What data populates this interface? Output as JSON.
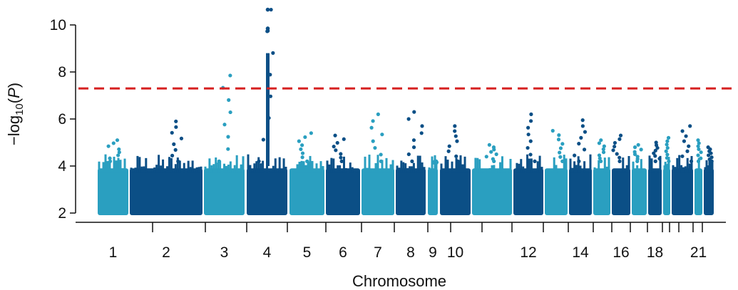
{
  "chart_data": {
    "type": "scatter",
    "title": "",
    "xlabel": "Chromosome",
    "ylabel_parts": {
      "prefix": "−log",
      "sub": "10",
      "open": "(",
      "var": "P",
      "close": ")"
    },
    "ylim": [
      1.6,
      11
    ],
    "yticks": [
      2,
      4,
      6,
      8,
      10
    ],
    "threshold": 7.3,
    "colors": {
      "light": "#2a9fc0",
      "dark": "#0b4f86",
      "threshold_line": "#d62020",
      "axis": "#111111"
    },
    "chromosomes": [
      {
        "chr": 1,
        "label": "1",
        "color": "light",
        "max": 5.1
      },
      {
        "chr": 2,
        "label": "2",
        "color": "dark",
        "max": 5.9
      },
      {
        "chr": 3,
        "label": "3",
        "color": "light",
        "max": 7.85
      },
      {
        "chr": 4,
        "label": "4",
        "color": "dark",
        "max": 10.65
      },
      {
        "chr": 5,
        "label": "5",
        "color": "light",
        "max": 5.4
      },
      {
        "chr": 6,
        "label": "6",
        "color": "dark",
        "max": 5.3
      },
      {
        "chr": 7,
        "label": "7",
        "color": "light",
        "max": 6.2
      },
      {
        "chr": 8,
        "label": "8",
        "color": "dark",
        "max": 6.3
      },
      {
        "chr": 9,
        "label": "9",
        "color": "light",
        "max": 4.1
      },
      {
        "chr": 10,
        "label": "10",
        "color": "dark",
        "max": 5.7
      },
      {
        "chr": 11,
        "label": "",
        "color": "light",
        "max": 4.9
      },
      {
        "chr": 12,
        "label": "12",
        "color": "dark",
        "max": 6.2
      },
      {
        "chr": 13,
        "label": "",
        "color": "light",
        "max": 5.5
      },
      {
        "chr": 14,
        "label": "14",
        "color": "dark",
        "max": 5.95
      },
      {
        "chr": 15,
        "label": "",
        "color": "light",
        "max": 5.1
      },
      {
        "chr": 16,
        "label": "16",
        "color": "dark",
        "max": 5.3
      },
      {
        "chr": 17,
        "label": "",
        "color": "light",
        "max": 4.9
      },
      {
        "chr": 18,
        "label": "18",
        "color": "dark",
        "max": 5.0
      },
      {
        "chr": 19,
        "label": "",
        "color": "light",
        "max": 5.2
      },
      {
        "chr": 20,
        "label": "",
        "color": "dark",
        "max": 5.7
      },
      {
        "chr": 21,
        "label": "21",
        "color": "light",
        "max": 5.1
      },
      {
        "chr": 22,
        "label": "",
        "color": "dark",
        "max": 4.8
      }
    ]
  }
}
